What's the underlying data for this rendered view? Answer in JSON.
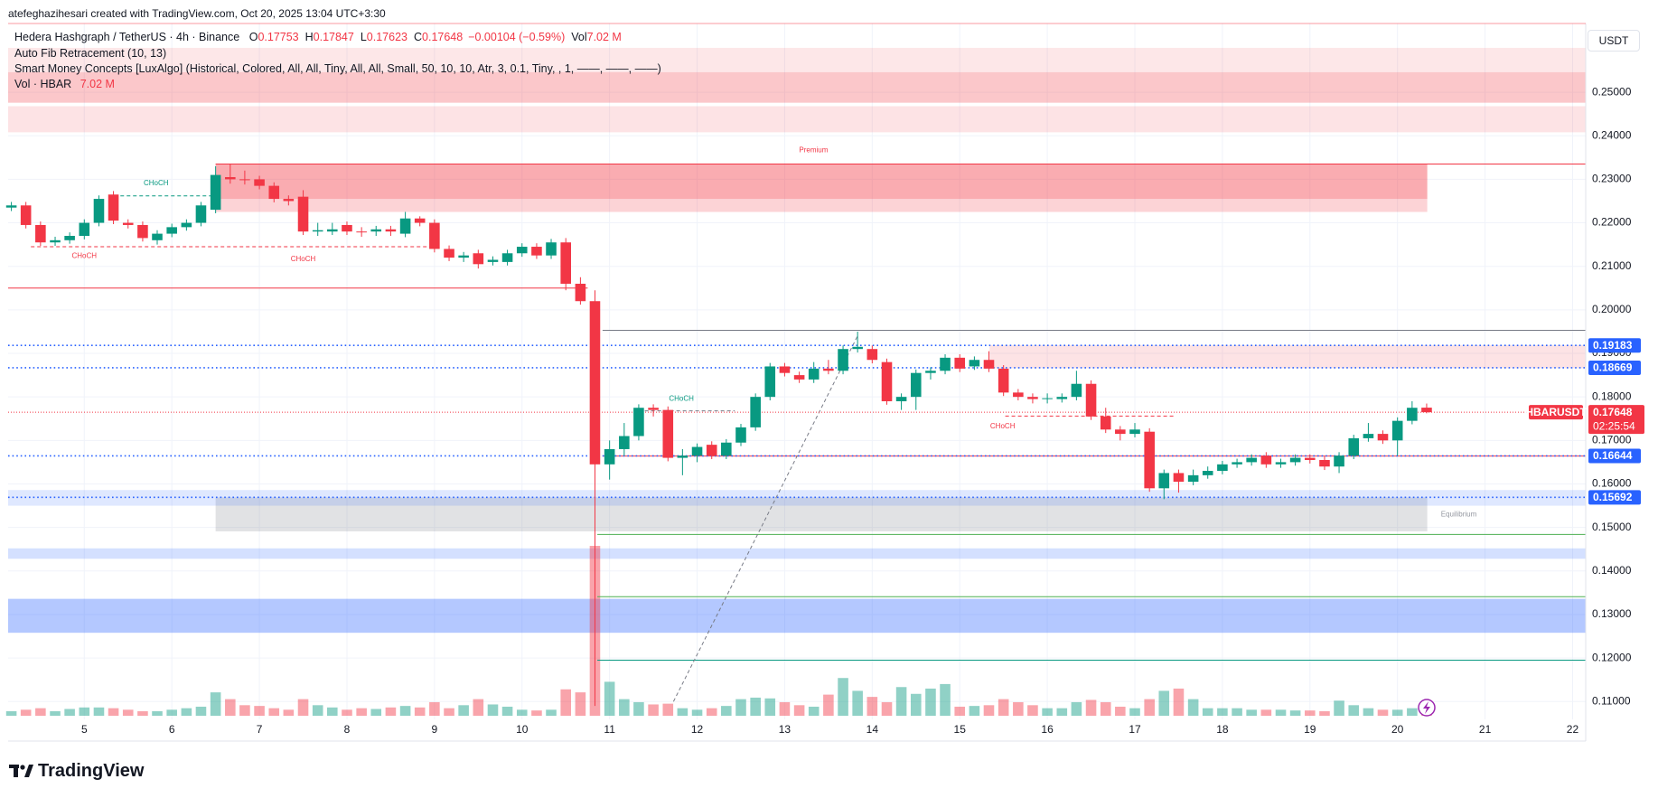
{
  "header": {
    "credit": "atefeghazihesari created with TradingView.com, Oct 20, 2025 13:04 UTC+3:30",
    "symbol": "Hedera Hashgraph / TetherUS · 4h · Binance",
    "ohlc": [
      {
        "label": "O",
        "value": "0.17753"
      },
      {
        "label": "H",
        "value": "0.17847"
      },
      {
        "label": "L",
        "value": "0.17623"
      },
      {
        "label": "C",
        "value": "0.17648"
      }
    ],
    "change": "−0.00104 (−0.59%)",
    "vol_label": "Vol",
    "vol_value": "7.02 M",
    "indicators": [
      "Auto Fib Retracement (10, 13)",
      "Smart Money Concepts [LuxAlgo] (Historical, Colored, All, All, Tiny, All, All, Small, 50, 10, 10, Atr, 3, 0.1, Tiny, , 1, ——, ——, ——)"
    ],
    "volume_name": "Vol · HBAR",
    "volume_value": "7.02 M",
    "currency": "USDT",
    "brand": "TradingView"
  },
  "chart_data": {
    "type": "candlestick",
    "up_color": "#089981",
    "down_color": "#f23645",
    "grid": true,
    "xlim": [
      4.13,
      22.15
    ],
    "ylim": [
      0.1059,
      0.2658
    ],
    "xticks": [
      5,
      6,
      7,
      8,
      9,
      10,
      11,
      12,
      13,
      14,
      15,
      16,
      17,
      18,
      19,
      20,
      21,
      22
    ],
    "yticks": [
      {
        "value": 0.25,
        "label": "0.25000"
      },
      {
        "value": 0.24,
        "label": "0.24000"
      },
      {
        "value": 0.23,
        "label": "0.23000"
      },
      {
        "value": 0.22,
        "label": "0.22000"
      },
      {
        "value": 0.21,
        "label": "0.21000"
      },
      {
        "value": 0.2,
        "label": "0.20000"
      },
      {
        "value": 0.19,
        "label": "0.19000"
      },
      {
        "value": 0.18,
        "label": "0.18000"
      },
      {
        "value": 0.17,
        "label": "0.17000"
      },
      {
        "value": 0.16,
        "label": "0.16000"
      },
      {
        "value": 0.15,
        "label": "0.15000"
      },
      {
        "value": 0.14,
        "label": "0.14000"
      },
      {
        "value": 0.13,
        "label": "0.13000"
      },
      {
        "value": 0.12,
        "label": "0.12000"
      },
      {
        "value": 0.11,
        "label": "0.11000"
      }
    ],
    "x": [
      4.167,
      4.333,
      4.5,
      4.667,
      4.833,
      5,
      5.167,
      5.333,
      5.5,
      5.667,
      5.833,
      6,
      6.167,
      6.333,
      6.5,
      6.667,
      6.833,
      7,
      7.167,
      7.333,
      7.5,
      7.667,
      7.833,
      8,
      8.167,
      8.333,
      8.5,
      8.667,
      8.833,
      9,
      9.167,
      9.333,
      9.5,
      9.667,
      9.833,
      10,
      10.167,
      10.333,
      10.5,
      10.667,
      10.833,
      11,
      11.167,
      11.333,
      11.5,
      11.667,
      11.833,
      12,
      12.167,
      12.333,
      12.5,
      12.667,
      12.833,
      13,
      13.167,
      13.333,
      13.5,
      13.667,
      13.833,
      14,
      14.167,
      14.333,
      14.5,
      14.667,
      14.833,
      15,
      15.167,
      15.333,
      15.5,
      15.667,
      15.833,
      16,
      16.167,
      16.333,
      16.5,
      16.667,
      16.833,
      17,
      17.167,
      17.333,
      17.5,
      17.667,
      17.833,
      18,
      18.167,
      18.333,
      18.5,
      18.667,
      18.833,
      19,
      19.167,
      19.333,
      19.5,
      19.667,
      19.833,
      20,
      20.167,
      20.333
    ],
    "open": [
      0.2235,
      0.224,
      0.2195,
      0.2155,
      0.216,
      0.217,
      0.22,
      0.2265,
      0.22,
      0.2195,
      0.216,
      0.2175,
      0.219,
      0.22,
      0.223,
      0.2305,
      0.23,
      0.23,
      0.2285,
      0.2255,
      0.226,
      0.218,
      0.218,
      0.2195,
      0.218,
      0.218,
      0.2185,
      0.2175,
      0.221,
      0.22,
      0.214,
      0.212,
      0.213,
      0.211,
      0.211,
      0.213,
      0.2145,
      0.2125,
      0.2155,
      0.206,
      0.202,
      0.1645,
      0.168,
      0.171,
      0.1775,
      0.177,
      0.166,
      0.1665,
      0.169,
      0.1665,
      0.1695,
      0.173,
      0.18,
      0.187,
      0.185,
      0.184,
      0.1865,
      0.186,
      0.191,
      0.191,
      0.188,
      0.179,
      0.18,
      0.1855,
      0.186,
      0.189,
      0.187,
      0.1885,
      0.1865,
      0.181,
      0.18,
      0.1795,
      0.1795,
      0.18,
      0.183,
      0.1755,
      0.1725,
      0.1715,
      0.172,
      0.159,
      0.1625,
      0.1605,
      0.162,
      0.163,
      0.1645,
      0.165,
      0.1665,
      0.1645,
      0.165,
      0.166,
      0.1655,
      0.164,
      0.1665,
      0.1705,
      0.1715,
      0.17,
      0.1745,
      0.17753
    ],
    "high": [
      0.2248,
      0.2248,
      0.2203,
      0.2168,
      0.2178,
      0.2208,
      0.2263,
      0.2273,
      0.2208,
      0.2203,
      0.2183,
      0.2198,
      0.2208,
      0.2248,
      0.233,
      0.2335,
      0.232,
      0.2308,
      0.2293,
      0.2263,
      0.2275,
      0.22,
      0.22,
      0.2203,
      0.219,
      0.2193,
      0.2193,
      0.2225,
      0.2215,
      0.2208,
      0.2148,
      0.2133,
      0.2138,
      0.2123,
      0.2138,
      0.2153,
      0.2153,
      0.2163,
      0.2165,
      0.2075,
      0.2045,
      0.17,
      0.174,
      0.1783,
      0.1783,
      0.1778,
      0.168,
      0.1693,
      0.1698,
      0.1703,
      0.1738,
      0.1808,
      0.1878,
      0.1878,
      0.1858,
      0.188,
      0.1885,
      0.1918,
      0.195,
      0.1918,
      0.1888,
      0.1808,
      0.1863,
      0.1868,
      0.1898,
      0.1898,
      0.1893,
      0.1905,
      0.1873,
      0.1818,
      0.1808,
      0.1808,
      0.1808,
      0.186,
      0.1838,
      0.1775,
      0.1733,
      0.174,
      0.1728,
      0.1633,
      0.1633,
      0.1633,
      0.164,
      0.1653,
      0.1658,
      0.1668,
      0.1673,
      0.1658,
      0.1668,
      0.1668,
      0.1663,
      0.1673,
      0.1713,
      0.174,
      0.1723,
      0.1753,
      0.179,
      0.17847
    ],
    "low": [
      0.2227,
      0.2187,
      0.2147,
      0.2147,
      0.2152,
      0.2162,
      0.2192,
      0.2197,
      0.2187,
      0.2157,
      0.215,
      0.2167,
      0.2182,
      0.2192,
      0.2222,
      0.229,
      0.2288,
      0.2277,
      0.2247,
      0.224,
      0.2172,
      0.217,
      0.2172,
      0.2172,
      0.2168,
      0.217,
      0.217,
      0.2167,
      0.2192,
      0.2132,
      0.2112,
      0.211,
      0.2095,
      0.2102,
      0.2102,
      0.2122,
      0.2117,
      0.2117,
      0.2045,
      0.2012,
      0.109,
      0.161,
      0.1665,
      0.17,
      0.1755,
      0.1652,
      0.162,
      0.165,
      0.1657,
      0.1657,
      0.1687,
      0.1722,
      0.1792,
      0.1847,
      0.1832,
      0.1832,
      0.1852,
      0.1852,
      0.1902,
      0.1877,
      0.1782,
      0.177,
      0.177,
      0.184,
      0.1852,
      0.1857,
      0.1862,
      0.1857,
      0.1802,
      0.1792,
      0.1785,
      0.1785,
      0.1787,
      0.1792,
      0.1747,
      0.1717,
      0.17,
      0.1707,
      0.1582,
      0.1565,
      0.158,
      0.1597,
      0.1612,
      0.1622,
      0.1637,
      0.1642,
      0.1637,
      0.1637,
      0.1642,
      0.1647,
      0.1632,
      0.1625,
      0.1657,
      0.1697,
      0.1692,
      0.1665,
      0.1737,
      0.17623
    ],
    "close": [
      0.224,
      0.2195,
      0.2155,
      0.216,
      0.217,
      0.22,
      0.2255,
      0.2205,
      0.2195,
      0.2165,
      0.2175,
      0.219,
      0.22,
      0.224,
      0.231,
      0.23,
      0.2298,
      0.2285,
      0.2255,
      0.225,
      0.218,
      0.2183,
      0.2185,
      0.218,
      0.2178,
      0.2185,
      0.218,
      0.221,
      0.22,
      0.214,
      0.212,
      0.2125,
      0.2105,
      0.2115,
      0.213,
      0.2145,
      0.2125,
      0.2155,
      0.206,
      0.202,
      0.1645,
      0.168,
      0.171,
      0.1775,
      0.177,
      0.166,
      0.1665,
      0.1685,
      0.1665,
      0.1695,
      0.173,
      0.18,
      0.187,
      0.1855,
      0.184,
      0.1865,
      0.186,
      0.191,
      0.1915,
      0.1885,
      0.179,
      0.18,
      0.1855,
      0.186,
      0.189,
      0.1865,
      0.1885,
      0.1865,
      0.181,
      0.18,
      0.1795,
      0.1797,
      0.18,
      0.183,
      0.1755,
      0.1725,
      0.1715,
      0.1725,
      0.159,
      0.1625,
      0.1605,
      0.162,
      0.163,
      0.1645,
      0.165,
      0.166,
      0.1645,
      0.165,
      0.166,
      0.1655,
      0.164,
      0.1665,
      0.1705,
      0.1715,
      0.17,
      0.1745,
      0.1775,
      0.17648
    ],
    "volume": [
      6,
      8,
      10,
      6,
      9,
      11,
      11,
      10,
      8,
      6,
      6,
      8,
      10,
      12,
      31,
      22,
      14,
      13,
      10,
      8,
      22,
      14,
      11,
      8,
      10,
      9,
      11,
      13,
      11,
      18,
      10,
      14,
      22,
      15,
      12,
      8,
      7,
      8,
      35,
      31,
      225,
      45,
      22,
      18,
      15,
      16,
      10,
      8,
      10,
      13,
      22,
      24,
      23,
      18,
      14,
      12,
      28,
      50,
      33,
      25,
      18,
      38,
      29,
      36,
      42,
      12,
      13,
      14,
      22,
      18,
      14,
      10,
      10,
      18,
      21,
      18,
      12,
      10,
      22,
      33,
      36,
      22,
      10,
      10,
      10,
      8,
      8,
      8,
      7,
      7,
      6,
      20,
      14,
      10,
      8,
      8,
      10,
      7.02
    ],
    "zones": [
      {
        "x1": 4.13,
        "x2": 22.15,
        "y1": 0.2476,
        "y2": 0.2602,
        "color": "rgba(242,54,69,0.12)"
      },
      {
        "x1": 4.13,
        "x2": 22.15,
        "y1": 0.2476,
        "y2": 0.2546,
        "color": "rgba(242,54,69,0.18)"
      },
      {
        "x1": 4.13,
        "x2": 22.15,
        "y1": 0.2408,
        "y2": 0.2468,
        "color": "rgba(242,54,69,0.14)"
      },
      {
        "x1": 6.5,
        "x2": 20.34,
        "y1": 0.2225,
        "y2": 0.2335,
        "color": "rgba(242,54,69,0.22)"
      },
      {
        "x1": 6.5,
        "x2": 20.34,
        "y1": 0.2255,
        "y2": 0.2335,
        "color": "rgba(242,54,69,0.25)"
      },
      {
        "x1": 15.34,
        "x2": 22.15,
        "y1": 0.1866,
        "y2": 0.1919,
        "color": "rgba(242,54,69,0.14)"
      },
      {
        "x1": 6.5,
        "x2": 20.34,
        "y1": 0.1491,
        "y2": 0.1569,
        "color": "rgba(120,123,134,0.22)"
      },
      {
        "x1": 4.13,
        "x2": 22.15,
        "y1": 0.155,
        "y2": 0.1586,
        "color": "rgba(41,98,255,0.15)"
      },
      {
        "x1": 4.13,
        "x2": 22.15,
        "y1": 0.1428,
        "y2": 0.1452,
        "color": "rgba(41,98,255,0.2)"
      },
      {
        "x1": 4.13,
        "x2": 22.15,
        "y1": 0.1258,
        "y2": 0.1336,
        "color": "rgba(41,98,255,0.35)"
      }
    ],
    "lines": [
      {
        "x1": 4.13,
        "x2": 10.75,
        "y1": 0.205,
        "y2": 0.205,
        "color": "#f23645",
        "style": "solid"
      },
      {
        "x1": 10.92,
        "x2": 22.15,
        "y1": 0.1664,
        "y2": 0.1664,
        "color": "#f23645",
        "style": "solid"
      },
      {
        "x1": 10.92,
        "x2": 22.15,
        "y1": 0.1953,
        "y2": 0.1953,
        "color": "#787b86",
        "style": "solid"
      },
      {
        "x1": 10.86,
        "x2": 22.15,
        "y1": 0.1484,
        "y2": 0.1484,
        "color": "#4caf50",
        "style": "solid"
      },
      {
        "x1": 10.86,
        "x2": 22.15,
        "y1": 0.1341,
        "y2": 0.1341,
        "color": "#4caf50",
        "style": "solid"
      },
      {
        "x1": 10.86,
        "x2": 22.15,
        "y1": 0.1195,
        "y2": 0.1195,
        "color": "#089981",
        "style": "solid"
      },
      {
        "x1": 6.5,
        "x2": 22.15,
        "y1": 0.2335,
        "y2": 0.2335,
        "color": "#f23645",
        "style": "solid"
      },
      {
        "x1": 5.34,
        "x2": 6.5,
        "y1": 0.2262,
        "y2": 0.2262,
        "color": "#089981",
        "style": "dashed"
      },
      {
        "x1": 4.39,
        "x2": 9.0,
        "y1": 0.2145,
        "y2": 0.2145,
        "color": "#f23645",
        "style": "dashed"
      },
      {
        "x1": 11.33,
        "x2": 12.43,
        "y1": 0.1768,
        "y2": 0.1768,
        "color": "#787b86",
        "style": "dashed"
      },
      {
        "x1": 15.52,
        "x2": 17.45,
        "y1": 0.1756,
        "y2": 0.1756,
        "color": "#f23645",
        "style": "dashed"
      },
      {
        "x1": 11.73,
        "x2": 13.84,
        "y1": 0.11,
        "y2": 0.1943,
        "color": "#787b86",
        "style": "dashed"
      }
    ],
    "annotations": [
      {
        "text": "Premium",
        "x": 13.33,
        "y": 0.2366,
        "color": "#f23645"
      },
      {
        "text": "Equilibrium",
        "x": 20.7,
        "y": 0.153,
        "color": "#9598a1"
      },
      {
        "text": "CHoCH",
        "x": 5.82,
        "y": 0.2291,
        "color": "#089981"
      },
      {
        "text": "CHoCH",
        "x": 5.0,
        "y": 0.2123,
        "color": "#f23645"
      },
      {
        "text": "CHoCH",
        "x": 7.5,
        "y": 0.2116,
        "color": "#f23645"
      },
      {
        "text": "CHoCH",
        "x": 11.82,
        "y": 0.1795,
        "color": "#089981"
      },
      {
        "text": "CHoCH",
        "x": 15.49,
        "y": 0.1732,
        "color": "#f23645"
      }
    ],
    "price_labels": [
      {
        "value": 0.19183,
        "color": "#2962ff"
      },
      {
        "value": 0.18669,
        "color": "#2962ff"
      },
      {
        "value": 0.16644,
        "color": "#2962ff"
      },
      {
        "value": 0.15692,
        "color": "#2962ff"
      }
    ],
    "last_price": {
      "value": 0.17648,
      "name": "HBARUSDT",
      "countdown": "02:25:54",
      "color": "#f23645"
    }
  }
}
